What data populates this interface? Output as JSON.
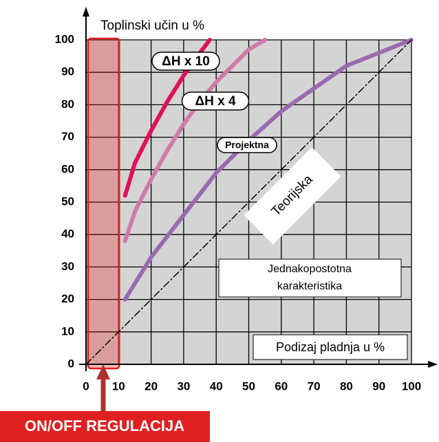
{
  "chart_data": {
    "type": "line",
    "ylabel": "Toplinski učin u %",
    "xlabel": "Podizaj pladnja u %",
    "note": [
      "Jednakopostotna",
      "karakteristika"
    ],
    "highlight": {
      "label": "ON/OFF REGULACIJA",
      "xlim": [
        0,
        10
      ],
      "color": "#e02020"
    },
    "xlim": [
      0,
      100
    ],
    "ylim": [
      0,
      100
    ],
    "xticks": [
      0,
      10,
      20,
      30,
      40,
      50,
      60,
      70,
      80,
      90,
      100
    ],
    "yticks": [
      0,
      10,
      20,
      30,
      40,
      50,
      60,
      70,
      80,
      90,
      100
    ],
    "grid": true,
    "series": [
      {
        "name": "ΔH x 10",
        "color": "#e0105a",
        "x": [
          12,
          15,
          20,
          25,
          30,
          35,
          38
        ],
        "values": [
          52,
          62,
          72,
          81,
          89,
          96,
          100
        ]
      },
      {
        "name": "ΔH x 4",
        "color": "#d07aa8",
        "x": [
          12,
          15,
          20,
          25,
          30,
          35,
          40,
          45,
          50,
          55
        ],
        "values": [
          38,
          47,
          57,
          66,
          74,
          81,
          87,
          92,
          97,
          100
        ]
      },
      {
        "name": "Projektna",
        "color": "#9a6aae",
        "x": [
          12,
          20,
          30,
          40,
          50,
          60,
          70,
          80,
          90,
          100
        ],
        "values": [
          20,
          33,
          46,
          59,
          69,
          78,
          85,
          92,
          96,
          100
        ]
      },
      {
        "name": "Teorijska",
        "color": "#000000",
        "x": [
          0,
          100
        ],
        "values": [
          0,
          100
        ]
      }
    ]
  }
}
